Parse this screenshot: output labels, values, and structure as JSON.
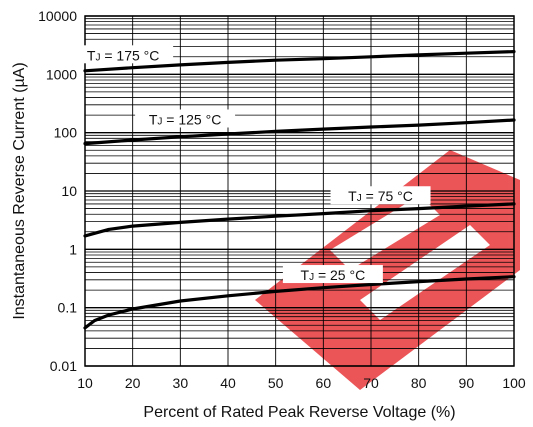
{
  "chart_data": {
    "type": "line",
    "title": "",
    "xlabel": "Percent of Rated Peak Reverse Voltage (%)",
    "ylabel": "Instantaneous Reverse Current (µA)",
    "xlim": [
      10,
      100
    ],
    "ylim": [
      0.01,
      10000
    ],
    "yscale": "log",
    "grid": true,
    "x_ticks": [
      "10",
      "20",
      "30",
      "40",
      "50",
      "60",
      "70",
      "80",
      "90",
      "100"
    ],
    "y_ticks": [
      "0.01",
      "0.1",
      "1",
      "10",
      "100",
      "1000",
      "10000"
    ],
    "series": [
      {
        "name": "TJ = 175 °C",
        "label_main": "T",
        "label_sub": "J",
        "label_rest": " = 175 °C",
        "x": [
          10,
          20,
          30,
          40,
          50,
          60,
          70,
          80,
          90,
          100
        ],
        "y": [
          1150,
          1300,
          1450,
          1600,
          1750,
          1850,
          2000,
          2150,
          2300,
          2450
        ]
      },
      {
        "name": "TJ = 125 °C",
        "label_main": "T",
        "label_sub": "J",
        "label_rest": " = 125 °C",
        "x": [
          10,
          20,
          30,
          40,
          50,
          60,
          70,
          80,
          90,
          100
        ],
        "y": [
          65,
          75,
          85,
          95,
          105,
          115,
          125,
          135,
          148,
          165
        ]
      },
      {
        "name": "TJ = 75 °C",
        "label_main": "T",
        "label_sub": "J",
        "label_rest": " = 75 °C",
        "x": [
          10,
          15,
          20,
          30,
          40,
          50,
          60,
          70,
          80,
          90,
          100
        ],
        "y": [
          1.7,
          2.2,
          2.5,
          2.9,
          3.3,
          3.7,
          4.1,
          4.6,
          5.0,
          5.5,
          6.0
        ]
      },
      {
        "name": "TJ = 25 °C",
        "label_main": "T",
        "label_sub": "J",
        "label_rest": " = 25 °C",
        "x": [
          10,
          12,
          15,
          20,
          30,
          40,
          50,
          60,
          70,
          80,
          90,
          100
        ],
        "y": [
          0.045,
          0.06,
          0.075,
          0.095,
          0.13,
          0.16,
          0.19,
          0.22,
          0.25,
          0.28,
          0.31,
          0.34
        ]
      }
    ]
  }
}
